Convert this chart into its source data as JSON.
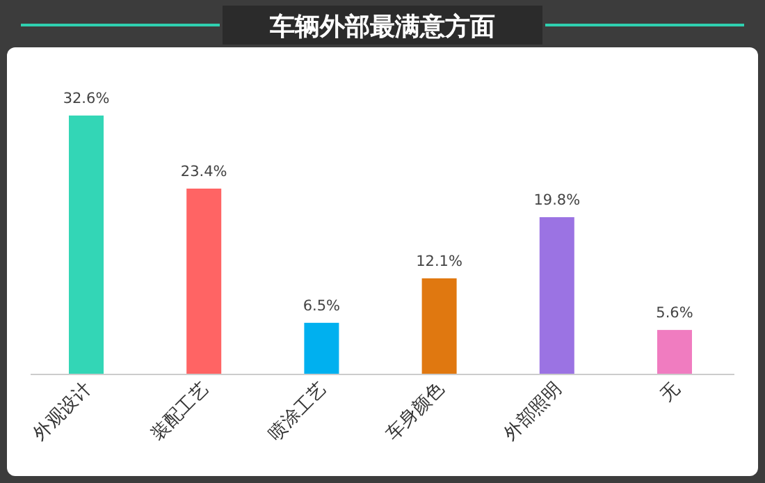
{
  "chart_data": {
    "type": "bar",
    "title": "车辆外部最满意方面",
    "categories": [
      "外观设计",
      "装配工艺",
      "喷涂工艺",
      "车身颜色",
      "外部照明",
      "无"
    ],
    "values": [
      32.6,
      23.4,
      6.5,
      12.1,
      19.8,
      5.6
    ],
    "value_labels": [
      "32.6%",
      "23.4%",
      "6.5%",
      "12.1%",
      "19.8%",
      "5.6%"
    ],
    "colors": [
      "#33d6b6",
      "#ff6464",
      "#00b0ef",
      "#e07810",
      "#9b73e3",
      "#f07cc0"
    ]
  }
}
